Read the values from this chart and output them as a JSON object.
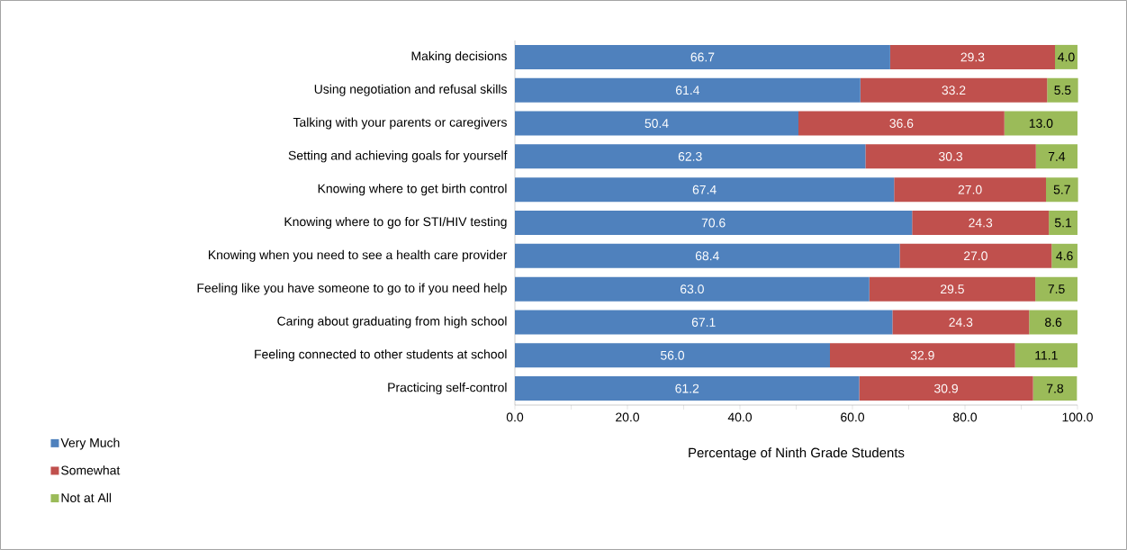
{
  "chart_data": {
    "type": "bar",
    "orientation": "horizontal",
    "stacked": true,
    "legend": "bottom left",
    "xlabel": "Percentage of Ninth Grade Students",
    "categories": [
      "Making decisions",
      "Using negotiation and refusal skills",
      "Talking with your parents or caregivers",
      "Setting and achieving goals for yourself",
      "Knowing where to get birth control",
      "Knowing where to go for STI/HIV testing",
      "Knowing when you need to see a health care provider",
      "Feeling like you have someone to go to if you need help",
      "Caring about graduating from high school",
      "Feeling connected to other students at school",
      "Practicing self-control"
    ],
    "series": [
      {
        "name": "Very Much",
        "color": "#4f81bd",
        "values": [
          66.7,
          61.4,
          50.4,
          62.3,
          67.4,
          70.6,
          68.4,
          63.0,
          67.1,
          56.0,
          61.2
        ],
        "value_labels": [
          "66.7",
          "61.4",
          "50.4",
          "62.3",
          "67.4",
          "70.6",
          "68.4",
          "63.0",
          "67.1",
          "56.0",
          "61.2"
        ]
      },
      {
        "name": "Somewhat",
        "color": "#c0504d",
        "values": [
          29.3,
          33.2,
          36.6,
          30.3,
          27.0,
          24.3,
          27.0,
          29.5,
          24.3,
          32.9,
          30.9
        ],
        "value_labels": [
          "29.3",
          "33.2",
          "36.6",
          "30.3",
          "27.0",
          "24.3",
          "27.0",
          "29.5",
          "24.3",
          "32.9",
          "30.9"
        ]
      },
      {
        "name": "Not at All",
        "color": "#9bbb59",
        "values": [
          4.0,
          5.5,
          13.0,
          7.4,
          5.7,
          5.1,
          4.6,
          7.5,
          8.6,
          11.1,
          7.8
        ],
        "value_labels": [
          "4.0",
          "5.5",
          "13.0",
          "7.4",
          "5.7",
          "5.1",
          "4.6",
          "7.5",
          "8.6",
          "11.1",
          "7.8"
        ]
      }
    ],
    "xlim": [
      0,
      100
    ],
    "xticks": [
      {
        "value": 0,
        "label": "0.0"
      },
      {
        "value": 10,
        "label": null
      },
      {
        "value": 20,
        "label": "20.0"
      },
      {
        "value": 30,
        "label": null
      },
      {
        "value": 40,
        "label": "40.0"
      },
      {
        "value": 50,
        "label": null
      },
      {
        "value": 60,
        "label": "60.0"
      },
      {
        "value": 70,
        "label": null
      },
      {
        "value": 80,
        "label": "80.0"
      },
      {
        "value": 90,
        "label": null
      },
      {
        "value": 100,
        "label": "100.0"
      }
    ]
  }
}
